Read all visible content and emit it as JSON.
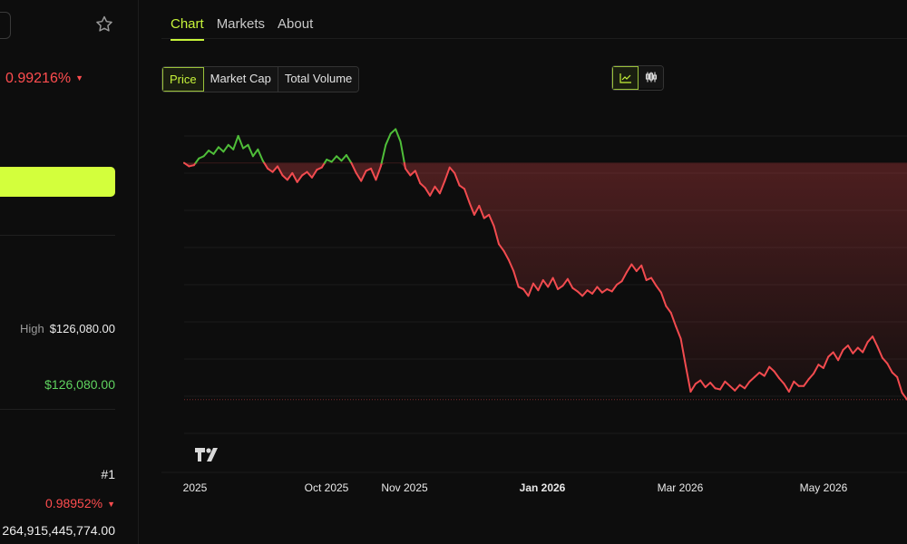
{
  "sidebar": {
    "price_change_pct": "0.99216%",
    "high_label": "High",
    "high_value": "$126,080.00",
    "ath_value": "$126,080.00",
    "rank": "#1",
    "change_pct_2": "0.98952%",
    "market_cap_partial": "264,915,445,774.00"
  },
  "tabs": [
    "Chart",
    "Markets",
    "About"
  ],
  "active_tab": "Chart",
  "metric_buttons": [
    "Price",
    "Market Cap",
    "Total Volume"
  ],
  "active_metric": "Price",
  "icons": {
    "favorite": "star-icon",
    "line_view": "line-chart-icon",
    "candle_view": "candlestick-icon",
    "watermark": "tradingview-logo-icon"
  },
  "colors": {
    "accent": "#c7f43a",
    "up": "#4fbe39",
    "down": "#f24b4f",
    "cta": "#d3ff3c"
  },
  "chart_data": {
    "type": "line",
    "x_ticks": [
      "2025",
      "Oct 2025",
      "Nov 2025",
      "Jan 2026",
      "Mar 2026",
      "May 2026"
    ],
    "x_ticks_bold": [
      "Jan 2026"
    ],
    "baseline_note": "line green above starting value, red below",
    "values": [
      0.0,
      -0.3,
      -0.2,
      0.4,
      0.6,
      1.1,
      0.8,
      1.4,
      1.0,
      1.6,
      1.2,
      2.4,
      1.3,
      1.6,
      0.6,
      1.2,
      0.2,
      -0.5,
      -0.8,
      -0.3,
      -1.1,
      -1.5,
      -0.9,
      -1.7,
      -1.1,
      -0.8,
      -1.3,
      -0.6,
      -0.4,
      0.3,
      0.1,
      0.6,
      0.2,
      0.7,
      0.0,
      -0.9,
      -1.6,
      -0.7,
      -0.5,
      -1.5,
      -0.3,
      1.6,
      2.6,
      3.0,
      1.9,
      -0.5,
      -1.1,
      -0.7,
      -1.8,
      -2.2,
      -2.9,
      -2.1,
      -2.7,
      -1.6,
      -0.4,
      -0.9,
      -2.0,
      -2.3,
      -3.5,
      -4.6,
      -3.8,
      -4.9,
      -4.6,
      -5.6,
      -7.2,
      -7.8,
      -8.6,
      -9.6,
      -11.0,
      -11.2,
      -11.8,
      -10.7,
      -11.3,
      -10.4,
      -11.0,
      -10.2,
      -11.2,
      -10.9,
      -10.3,
      -11.1,
      -11.4,
      -11.8,
      -11.3,
      -11.6,
      -11.0,
      -11.5,
      -11.2,
      -11.4,
      -10.8,
      -10.5,
      -9.7,
      -9.0,
      -9.6,
      -9.1,
      -10.4,
      -10.2,
      -10.9,
      -11.5,
      -12.7,
      -13.3,
      -14.5,
      -15.6,
      -18.0,
      -20.3,
      -19.6,
      -19.3,
      -19.9,
      -19.5,
      -20.0,
      -20.1,
      -19.4,
      -19.8,
      -20.2,
      -19.7,
      -20.0,
      -19.4,
      -19.0,
      -18.6,
      -18.9,
      -18.1,
      -18.5,
      -19.1,
      -19.6,
      -20.3,
      -19.4,
      -19.8,
      -19.8,
      -19.2,
      -18.7,
      -17.9,
      -18.2,
      -17.2,
      -16.8,
      -17.5,
      -16.6,
      -16.2,
      -16.9,
      -16.4,
      -16.8,
      -15.9,
      -15.4,
      -16.3,
      -17.3,
      -17.8,
      -18.6,
      -19.0,
      -20.4,
      -21.0
    ]
  }
}
